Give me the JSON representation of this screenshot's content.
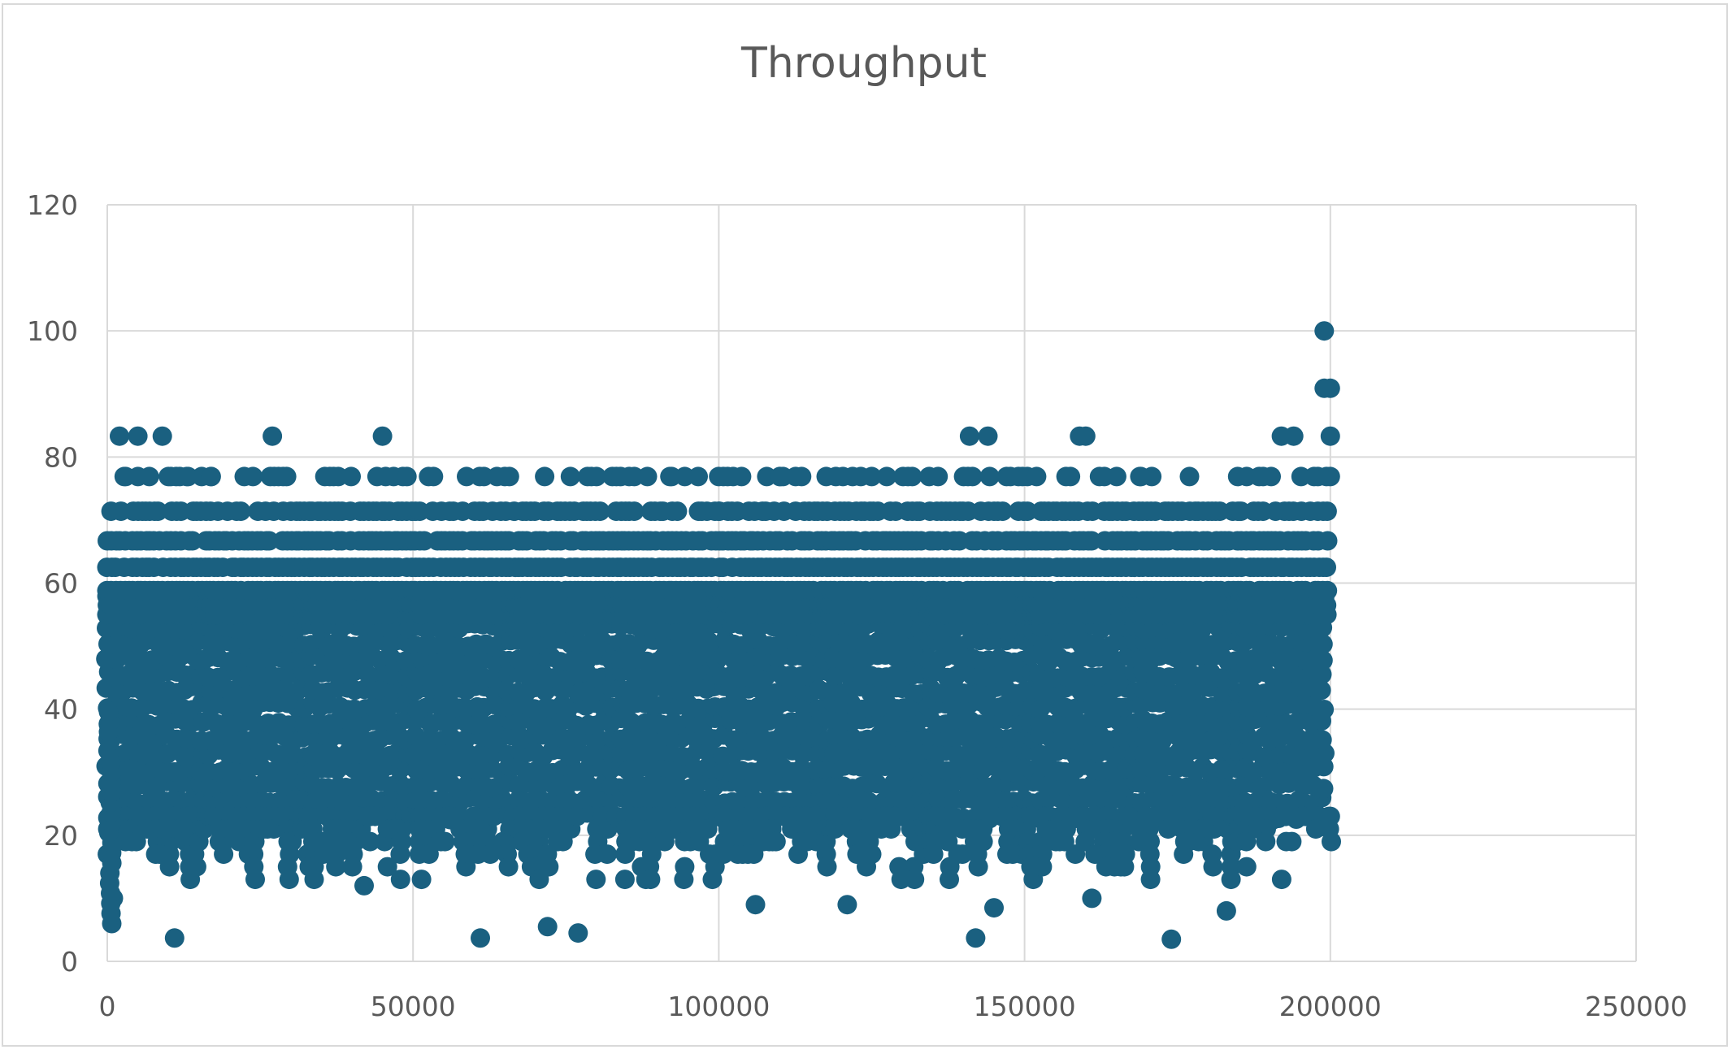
{
  "chart_data": {
    "type": "scatter",
    "title": "Throughput",
    "xlabel": "",
    "ylabel": "",
    "xlim": [
      0,
      250000
    ],
    "ylim": [
      0,
      120
    ],
    "x_ticks": [
      "0",
      "50000",
      "100000",
      "150000",
      "200000",
      "250000"
    ],
    "y_ticks": [
      "0",
      "20",
      "40",
      "60",
      "80",
      "100",
      "120"
    ],
    "grid": true,
    "legend": "none",
    "marker_color": "#1a6080",
    "series": [
      {
        "x_range": [
          0,
          200000
        ],
        "discrete_high_levels": [
          62.5,
          66.7,
          71.4,
          76.9,
          83.3,
          90.9,
          100
        ],
        "dense_band": [
          23,
          58
        ],
        "values_sample": [
          [
            0,
            66.7
          ],
          [
            1000,
            10
          ],
          [
            2000,
            83.3
          ],
          [
            3000,
            76.9
          ],
          [
            5000,
            83.3
          ],
          [
            9000,
            83.3
          ],
          [
            10000,
            76.9
          ],
          [
            11000,
            3.7
          ],
          [
            13000,
            76.9
          ],
          [
            17000,
            76.9
          ],
          [
            27000,
            83.3
          ],
          [
            28000,
            76.9
          ],
          [
            42000,
            12
          ],
          [
            45000,
            83.3
          ],
          [
            49000,
            76.9
          ],
          [
            61000,
            3.7
          ],
          [
            65000,
            76.9
          ],
          [
            72000,
            5.5
          ],
          [
            77000,
            4.5
          ],
          [
            80000,
            76.9
          ],
          [
            92000,
            76.9
          ],
          [
            100000,
            71.4
          ],
          [
            106000,
            9
          ],
          [
            110000,
            76.9
          ],
          [
            121000,
            9
          ],
          [
            125000,
            76.9
          ],
          [
            141000,
            83.3
          ],
          [
            142000,
            3.7
          ],
          [
            144000,
            83.3
          ],
          [
            145000,
            8.5
          ],
          [
            159000,
            83.3
          ],
          [
            160000,
            83.3
          ],
          [
            161000,
            10
          ],
          [
            169000,
            76.9
          ],
          [
            174000,
            3.5
          ],
          [
            183000,
            8
          ],
          [
            192000,
            83.3
          ],
          [
            194000,
            83.3
          ],
          [
            199000,
            100
          ],
          [
            199000,
            90.9
          ],
          [
            200000,
            90.9
          ],
          [
            200000,
            83.3
          ],
          [
            200000,
            76.9
          ],
          [
            200000,
            23
          ]
        ]
      }
    ]
  }
}
